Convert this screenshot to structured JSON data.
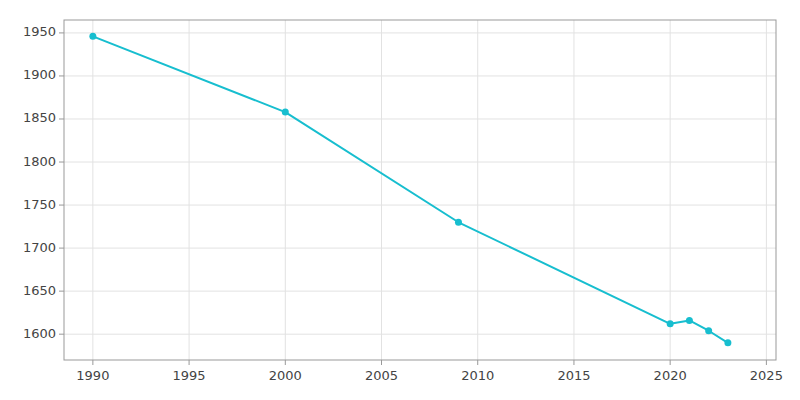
{
  "chart_data": {
    "type": "line",
    "x": [
      1990,
      2000,
      2009,
      2020,
      2021,
      2022,
      2023
    ],
    "values": [
      1946,
      1858,
      1730,
      1612,
      1616,
      1604,
      1590
    ],
    "color": "#17becf",
    "marker": "circle",
    "xlim": [
      1988.5,
      2025.5
    ],
    "ylim": [
      1570,
      1965
    ],
    "xticks": [
      1990,
      1995,
      2000,
      2005,
      2010,
      2015,
      2020,
      2025
    ],
    "yticks": [
      1600,
      1650,
      1700,
      1750,
      1800,
      1850,
      1900,
      1950
    ],
    "grid": true
  }
}
